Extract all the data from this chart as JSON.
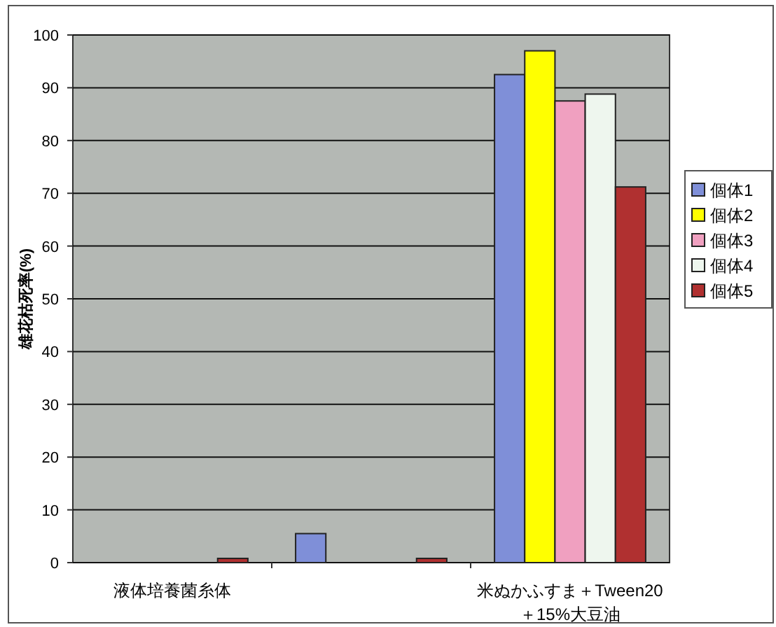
{
  "chart_data": {
    "type": "bar",
    "ylabel": "雄花枯死率(%)",
    "categories": [
      "液体培養菌糸体",
      null,
      "米ぬかふすま＋Tween20\n＋15%大豆油"
    ],
    "series": [
      {
        "name": "個体1",
        "color": "#7f8fd8",
        "values": [
          0,
          5.5,
          92.5
        ]
      },
      {
        "name": "個体2",
        "color": "#ffff00",
        "values": [
          0,
          0,
          97
        ]
      },
      {
        "name": "個体3",
        "color": "#f0a0c0",
        "values": [
          0,
          0,
          87.5
        ]
      },
      {
        "name": "個体4",
        "color": "#eef6ee",
        "values": [
          0,
          0,
          88.8
        ]
      },
      {
        "name": "個体5",
        "color": "#b03030",
        "values": [
          0.8,
          0.8,
          71.2
        ]
      }
    ],
    "ylim": [
      0,
      100
    ],
    "yticks": [
      0,
      10,
      20,
      30,
      40,
      50,
      60,
      70,
      80,
      90,
      100
    ],
    "grid": "y",
    "legend": "right"
  }
}
